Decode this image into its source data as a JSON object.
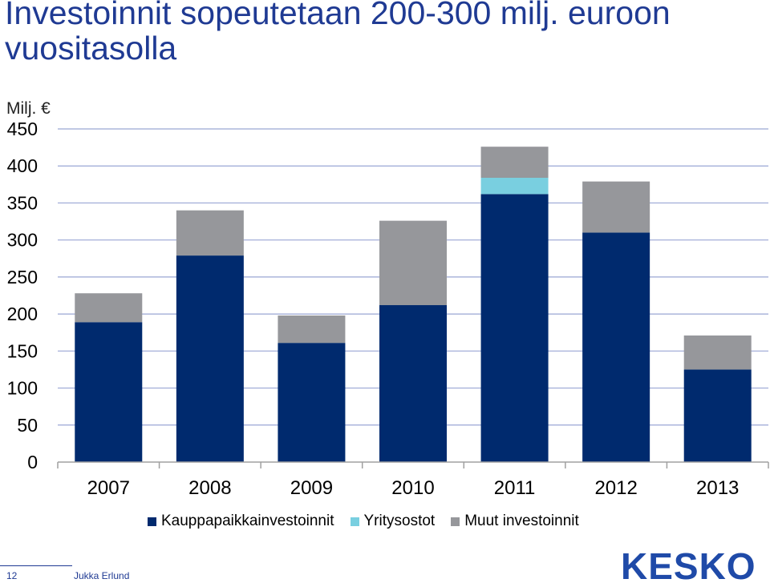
{
  "slide": {
    "title": "Investoinnit sopeutetaan 200-300 milj. euroon vuositasolla",
    "page_number": "12",
    "author": "Jukka Erlund",
    "logo_text": "KESKO"
  },
  "chart_data": {
    "type": "bar",
    "stacked": true,
    "ylabel": "Milj. €",
    "ylim": [
      0,
      450
    ],
    "yticks": [
      0,
      50,
      100,
      150,
      200,
      250,
      300,
      350,
      400,
      450
    ],
    "grid": true,
    "legend_position": "bottom",
    "categories": [
      "2007",
      "2008",
      "2009",
      "2010",
      "2011",
      "2012",
      "2013"
    ],
    "series": [
      {
        "name": "Kauppapaikkainvestoinnit",
        "color": "#002a6e",
        "values": [
          189,
          279,
          161,
          212,
          362,
          310,
          125
        ]
      },
      {
        "name": "Yritysostot",
        "color": "#79cfe0",
        "values": [
          0,
          0,
          0,
          0,
          22,
          0,
          0
        ]
      },
      {
        "name": "Muut investoinnit",
        "color": "#96979b",
        "values": [
          39,
          61,
          37,
          114,
          42,
          69,
          46
        ]
      }
    ]
  }
}
